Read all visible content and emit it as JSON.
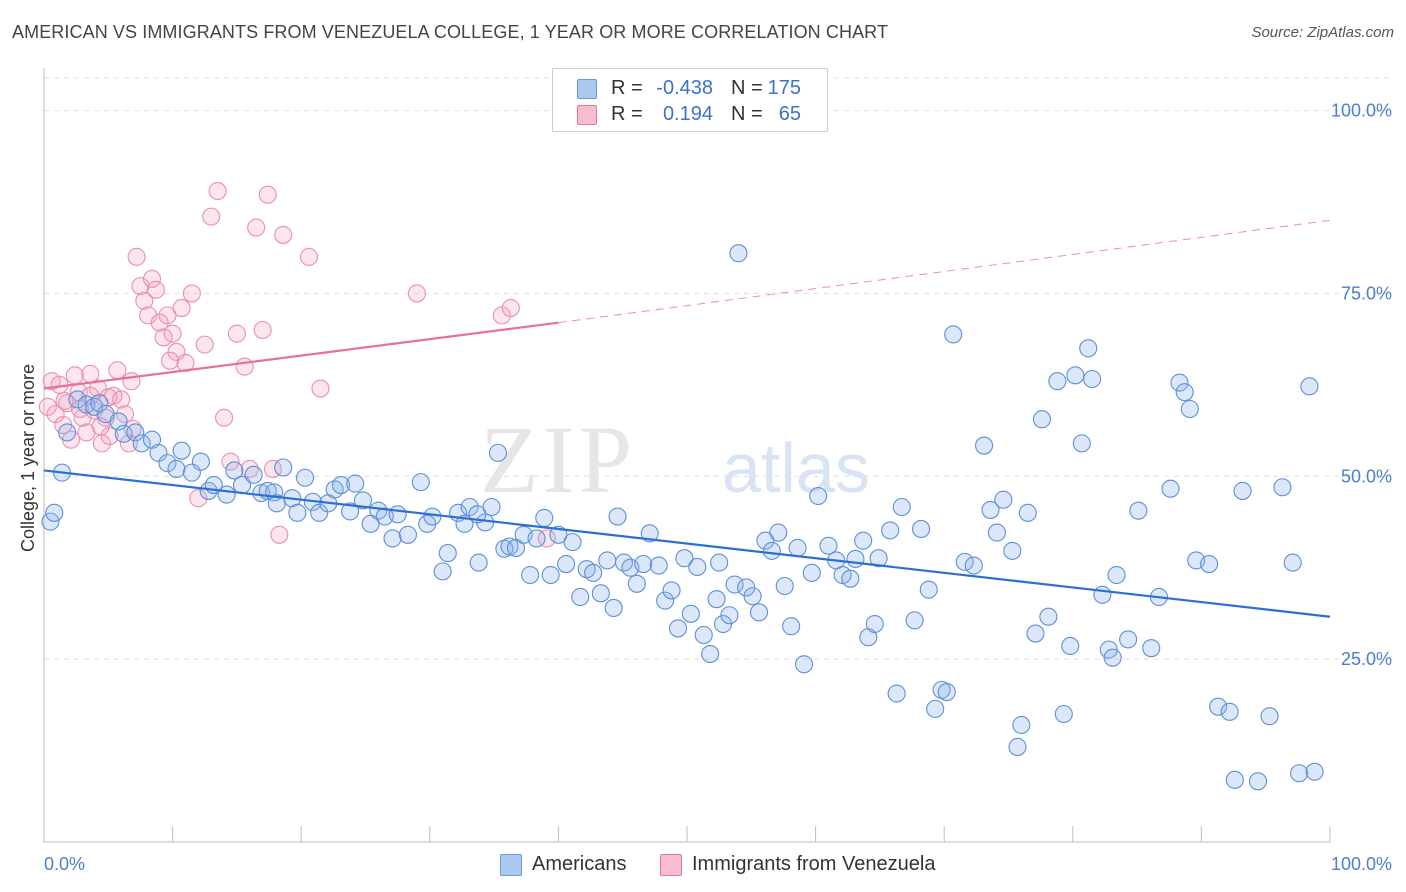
{
  "header": {
    "title": "AMERICAN VS IMMIGRANTS FROM VENEZUELA COLLEGE, 1 YEAR OR MORE CORRELATION CHART",
    "source": "Source: ZipAtlas.com"
  },
  "watermark": {
    "zip": "ZIP",
    "atlas": "atlas"
  },
  "legend": {
    "rows": [
      {
        "r_label": "R =",
        "r_value": "-0.438",
        "n_label": "N =",
        "n_value": "175",
        "color": "#aac8f0",
        "border": "#6a9ad8"
      },
      {
        "r_label": "R =",
        "r_value": "0.194",
        "n_label": "N =",
        "n_value": "65",
        "color": "#f8bcd0",
        "border": "#e07aa0"
      }
    ]
  },
  "bottom_legend": {
    "items": [
      {
        "label": "Americans",
        "color": "#aac8f0",
        "border": "#6a9ad8"
      },
      {
        "label": "Immigrants from Venezuela",
        "color": "#f8bcd0",
        "border": "#e07aa0"
      }
    ]
  },
  "chart_data": {
    "type": "scatter",
    "title": "AMERICAN VS IMMIGRANTS FROM VENEZUELA COLLEGE, 1 YEAR OR MORE CORRELATION CHART",
    "xlabel": "",
    "ylabel": "College, 1 year or more",
    "xlim": [
      0,
      100
    ],
    "ylim": [
      0,
      105
    ],
    "x_tick_labels": [
      "0.0%",
      "100.0%"
    ],
    "y_ticks": [
      25,
      50,
      75,
      100
    ],
    "y_tick_labels": [
      "25.0%",
      "50.0%",
      "75.0%",
      "100.0%"
    ],
    "grid": true,
    "legend_position": "top-center",
    "colors": {
      "americans": "#4a86d8",
      "venezuela": "#e8709a",
      "blue_line": "#2b6fd6",
      "pink_line": "#e8709a"
    },
    "series": [
      {
        "name": "Americans",
        "color": "#4a86d8",
        "trend": {
          "x": [
            0,
            100
          ],
          "y": [
            50.8,
            30.8
          ]
        },
        "points": [
          [
            0.5,
            43.8
          ],
          [
            0.8,
            45
          ],
          [
            1.4,
            50.5
          ],
          [
            1.8,
            56
          ],
          [
            2.6,
            60.5
          ],
          [
            3.3,
            59.8
          ],
          [
            3.9,
            59.5
          ],
          [
            4.3,
            60
          ],
          [
            4.8,
            58.5
          ],
          [
            5.8,
            57.5
          ],
          [
            6.2,
            55.8
          ],
          [
            7.1,
            56
          ],
          [
            7.6,
            54.5
          ],
          [
            8.4,
            55
          ],
          [
            8.9,
            53.2
          ],
          [
            9.6,
            51.8
          ],
          [
            10.3,
            51
          ],
          [
            10.7,
            53.5
          ],
          [
            11.5,
            50.5
          ],
          [
            12.2,
            52
          ],
          [
            12.8,
            48
          ],
          [
            13.2,
            48.8
          ],
          [
            14.2,
            47.5
          ],
          [
            14.8,
            50.8
          ],
          [
            15.4,
            48.8
          ],
          [
            16.3,
            50.2
          ],
          [
            16.9,
            47.7
          ],
          [
            17.4,
            48
          ],
          [
            17.9,
            47.8
          ],
          [
            18.1,
            46.3
          ],
          [
            18.6,
            51.2
          ],
          [
            19.3,
            47
          ],
          [
            19.7,
            45
          ],
          [
            20.3,
            49.8
          ],
          [
            20.9,
            46.5
          ],
          [
            21.4,
            45
          ],
          [
            22.1,
            46.3
          ],
          [
            22.6,
            48.2
          ],
          [
            23.1,
            48.8
          ],
          [
            23.8,
            45.2
          ],
          [
            24.2,
            49
          ],
          [
            24.8,
            46.7
          ],
          [
            25.4,
            43.5
          ],
          [
            26,
            45.3
          ],
          [
            26.5,
            44.5
          ],
          [
            27.1,
            41.5
          ],
          [
            27.5,
            44.8
          ],
          [
            28.3,
            42
          ],
          [
            29.3,
            49.2
          ],
          [
            29.8,
            43.5
          ],
          [
            30.2,
            44.5
          ],
          [
            31,
            37
          ],
          [
            31.4,
            39.5
          ],
          [
            32.2,
            45
          ],
          [
            32.7,
            43.5
          ],
          [
            33.1,
            45.8
          ],
          [
            33.8,
            38.2
          ],
          [
            34.3,
            43.7
          ],
          [
            34.8,
            45.8
          ],
          [
            35.3,
            53.2
          ],
          [
            35.8,
            40.1
          ],
          [
            36.2,
            40.4
          ],
          [
            36.7,
            40.2
          ],
          [
            37.3,
            42
          ],
          [
            37.8,
            36.5
          ],
          [
            38.3,
            41.5
          ],
          [
            38.9,
            44.3
          ],
          [
            39.4,
            36.5
          ],
          [
            40,
            42
          ],
          [
            40.6,
            38
          ],
          [
            41.1,
            41
          ],
          [
            41.7,
            33.5
          ],
          [
            42.2,
            37.3
          ],
          [
            42.7,
            36.8
          ],
          [
            43.3,
            34
          ],
          [
            43.8,
            38.5
          ],
          [
            44.3,
            32
          ],
          [
            45.1,
            38.2
          ],
          [
            45.6,
            37.5
          ],
          [
            46.1,
            35.3
          ],
          [
            46.6,
            38
          ],
          [
            47.1,
            42.2
          ],
          [
            47.8,
            37.8
          ],
          [
            48.3,
            33
          ],
          [
            48.8,
            34.4
          ],
          [
            49.3,
            29.2
          ],
          [
            49.8,
            38.8
          ],
          [
            50.3,
            31.2
          ],
          [
            50.8,
            37.6
          ],
          [
            51.3,
            28.3
          ],
          [
            51.8,
            25.7
          ],
          [
            52.3,
            33.2
          ],
          [
            52.8,
            29.8
          ],
          [
            53.3,
            31
          ],
          [
            53.7,
            35.2
          ],
          [
            54,
            80.5
          ],
          [
            54.6,
            34.8
          ],
          [
            55.1,
            33.6
          ],
          [
            55.6,
            31.4
          ],
          [
            56.1,
            41.2
          ],
          [
            56.6,
            39.8
          ],
          [
            57.1,
            42.3
          ],
          [
            57.6,
            35
          ],
          [
            58.1,
            29.5
          ],
          [
            58.6,
            40.2
          ],
          [
            59.1,
            24.3
          ],
          [
            59.7,
            36.8
          ],
          [
            60.2,
            47.3
          ],
          [
            61,
            40.5
          ],
          [
            61.6,
            38.5
          ],
          [
            62.1,
            36.5
          ],
          [
            62.7,
            36
          ],
          [
            63.1,
            38.7
          ],
          [
            63.7,
            41.2
          ],
          [
            64.1,
            28
          ],
          [
            64.6,
            29.8
          ],
          [
            64.9,
            38.8
          ],
          [
            65.8,
            42.6
          ],
          [
            66.3,
            20.3
          ],
          [
            66.7,
            45.8
          ],
          [
            67.7,
            30.3
          ],
          [
            68.2,
            42.8
          ],
          [
            68.8,
            34.5
          ],
          [
            69.3,
            18.2
          ],
          [
            69.8,
            20.8
          ],
          [
            70.2,
            20.5
          ],
          [
            70.7,
            69.4
          ],
          [
            71.6,
            38.3
          ],
          [
            72.3,
            37.8
          ],
          [
            73.1,
            54.2
          ],
          [
            73.6,
            45.4
          ],
          [
            74.1,
            42.3
          ],
          [
            74.6,
            46.8
          ],
          [
            75.3,
            39.8
          ],
          [
            75.7,
            13
          ],
          [
            76,
            16
          ],
          [
            76.5,
            45
          ],
          [
            77.1,
            28.5
          ],
          [
            77.6,
            57.8
          ],
          [
            78.1,
            30.8
          ],
          [
            78.8,
            63
          ],
          [
            79.3,
            17.5
          ],
          [
            79.8,
            26.8
          ],
          [
            80.2,
            63.8
          ],
          [
            80.7,
            54.5
          ],
          [
            81.2,
            67.5
          ],
          [
            81.5,
            63.3
          ],
          [
            82.3,
            33.8
          ],
          [
            82.8,
            26.3
          ],
          [
            83.1,
            25.2
          ],
          [
            83.4,
            36.5
          ],
          [
            84.3,
            27.7
          ],
          [
            85.1,
            45.3
          ],
          [
            86.1,
            26.5
          ],
          [
            86.7,
            33.5
          ],
          [
            87.6,
            48.3
          ],
          [
            88.3,
            62.8
          ],
          [
            88.7,
            61.5
          ],
          [
            89.1,
            59.2
          ],
          [
            89.6,
            38.5
          ],
          [
            90.6,
            38
          ],
          [
            91.3,
            18.5
          ],
          [
            92.2,
            17.8
          ],
          [
            92.6,
            8.5
          ],
          [
            93.2,
            48
          ],
          [
            94.4,
            8.3
          ],
          [
            95.3,
            17.2
          ],
          [
            96.3,
            48.5
          ],
          [
            97.1,
            38.2
          ],
          [
            97.6,
            9.4
          ],
          [
            98.4,
            62.3
          ],
          [
            98.8,
            9.6
          ],
          [
            33.7,
            44.8
          ],
          [
            44.6,
            44.5
          ],
          [
            52.5,
            38.2
          ]
        ]
      },
      {
        "name": "Immigrants from Venezuela",
        "color": "#e8709a",
        "trend": {
          "x": [
            0,
            40
          ],
          "y": [
            62,
            71
          ],
          "extended_x": [
            40,
            100
          ],
          "extended_y": [
            71,
            85
          ]
        },
        "points": [
          [
            0.3,
            59.5
          ],
          [
            0.6,
            63
          ],
          [
            0.9,
            58.5
          ],
          [
            1.2,
            62.5
          ],
          [
            1.5,
            57
          ],
          [
            1.8,
            60
          ],
          [
            2.1,
            55
          ],
          [
            2.4,
            63.8
          ],
          [
            2.7,
            61.5
          ],
          [
            3,
            58
          ],
          [
            3.3,
            56
          ],
          [
            3.6,
            64
          ],
          [
            3.9,
            59
          ],
          [
            4.2,
            62
          ],
          [
            4.5,
            54.5
          ],
          [
            4.8,
            58
          ],
          [
            5.1,
            55.5
          ],
          [
            5.4,
            61
          ],
          [
            5.7,
            64.5
          ],
          [
            6,
            60.5
          ],
          [
            6.3,
            58.5
          ],
          [
            6.6,
            54.5
          ],
          [
            6.9,
            56.5
          ],
          [
            7.2,
            80
          ],
          [
            7.5,
            76
          ],
          [
            7.8,
            74
          ],
          [
            8.1,
            72
          ],
          [
            8.4,
            77
          ],
          [
            8.7,
            75.5
          ],
          [
            9,
            71
          ],
          [
            9.3,
            69
          ],
          [
            9.6,
            72
          ],
          [
            10,
            69.5
          ],
          [
            10.3,
            67
          ],
          [
            10.7,
            73
          ],
          [
            11,
            65.5
          ],
          [
            11.5,
            75
          ],
          [
            12,
            47
          ],
          [
            12.5,
            68
          ],
          [
            13,
            85.5
          ],
          [
            13.5,
            89
          ],
          [
            14,
            58
          ],
          [
            14.5,
            52
          ],
          [
            15,
            69.5
          ],
          [
            15.6,
            65
          ],
          [
            16,
            51
          ],
          [
            16.5,
            84
          ],
          [
            17,
            70
          ],
          [
            17.4,
            88.5
          ],
          [
            17.8,
            51
          ],
          [
            18.3,
            42
          ],
          [
            18.6,
            83
          ],
          [
            20.6,
            80
          ],
          [
            21.5,
            62
          ],
          [
            29,
            75
          ],
          [
            35.6,
            72
          ],
          [
            36.3,
            73
          ],
          [
            39.1,
            41.5
          ],
          [
            1.6,
            60.3
          ],
          [
            2.8,
            59.2
          ],
          [
            3.6,
            61
          ],
          [
            4.4,
            56.8
          ],
          [
            5,
            60.8
          ],
          [
            6.8,
            63
          ],
          [
            9.8,
            65.8
          ]
        ]
      }
    ]
  }
}
